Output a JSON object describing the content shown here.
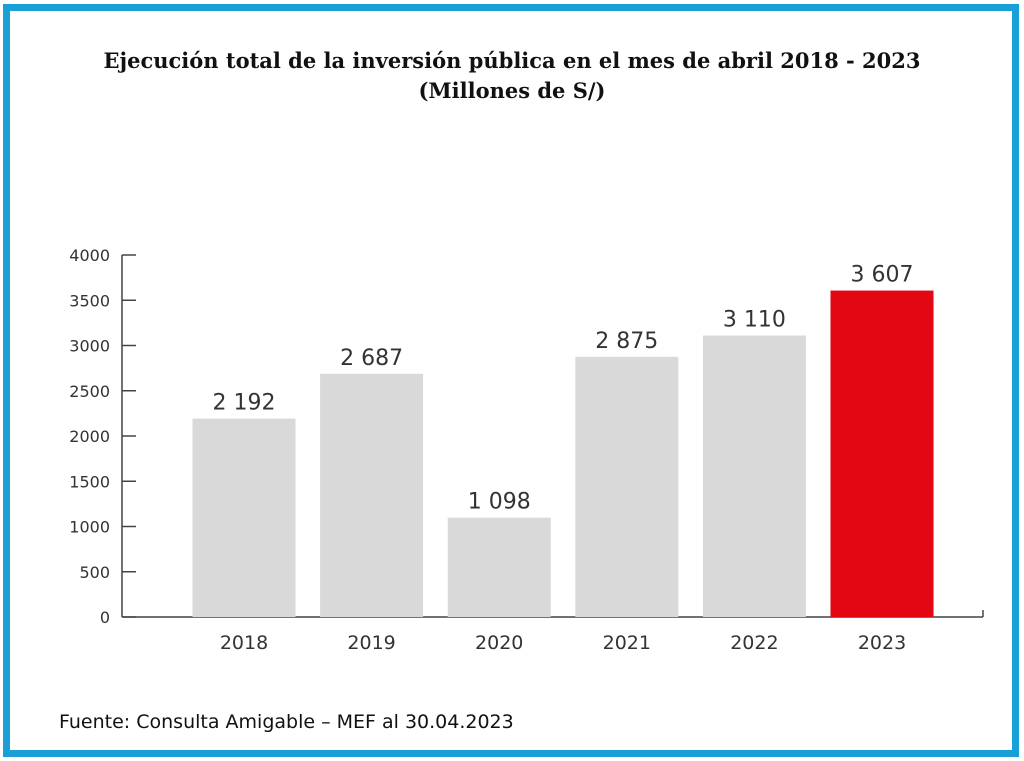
{
  "chart_data": {
    "type": "bar",
    "title": "Ejecución total de la inversión pública en el mes de abril 2018 - 2023",
    "subtitle": "(Millones de S/)",
    "categories": [
      "2018",
      "2019",
      "2020",
      "2021",
      "2022",
      "2023"
    ],
    "values": [
      2192,
      2687,
      1098,
      2875,
      3110,
      3607
    ],
    "value_labels": [
      "2 192",
      "2 687",
      "1 098",
      "2 875",
      "3 110",
      "3 607"
    ],
    "bar_colors": [
      "#d9d9d9",
      "#d9d9d9",
      "#d9d9d9",
      "#d9d9d9",
      "#d9d9d9",
      "#e30613"
    ],
    "ylim": [
      0,
      4000
    ],
    "yticks": [
      "0",
      "500",
      "1000",
      "1500",
      "2000",
      "2500",
      "3000",
      "3500",
      "4000"
    ],
    "xlabel": "",
    "ylabel": "",
    "grid": false,
    "legend": "none"
  },
  "source": "Fuente: Consulta Amigable – MEF al 30.04.2023",
  "colors": {
    "border": "#1aa0d8",
    "bar": "#d9d9d9",
    "highlight": "#e30613",
    "axis": "#444444",
    "text": "#333333"
  }
}
